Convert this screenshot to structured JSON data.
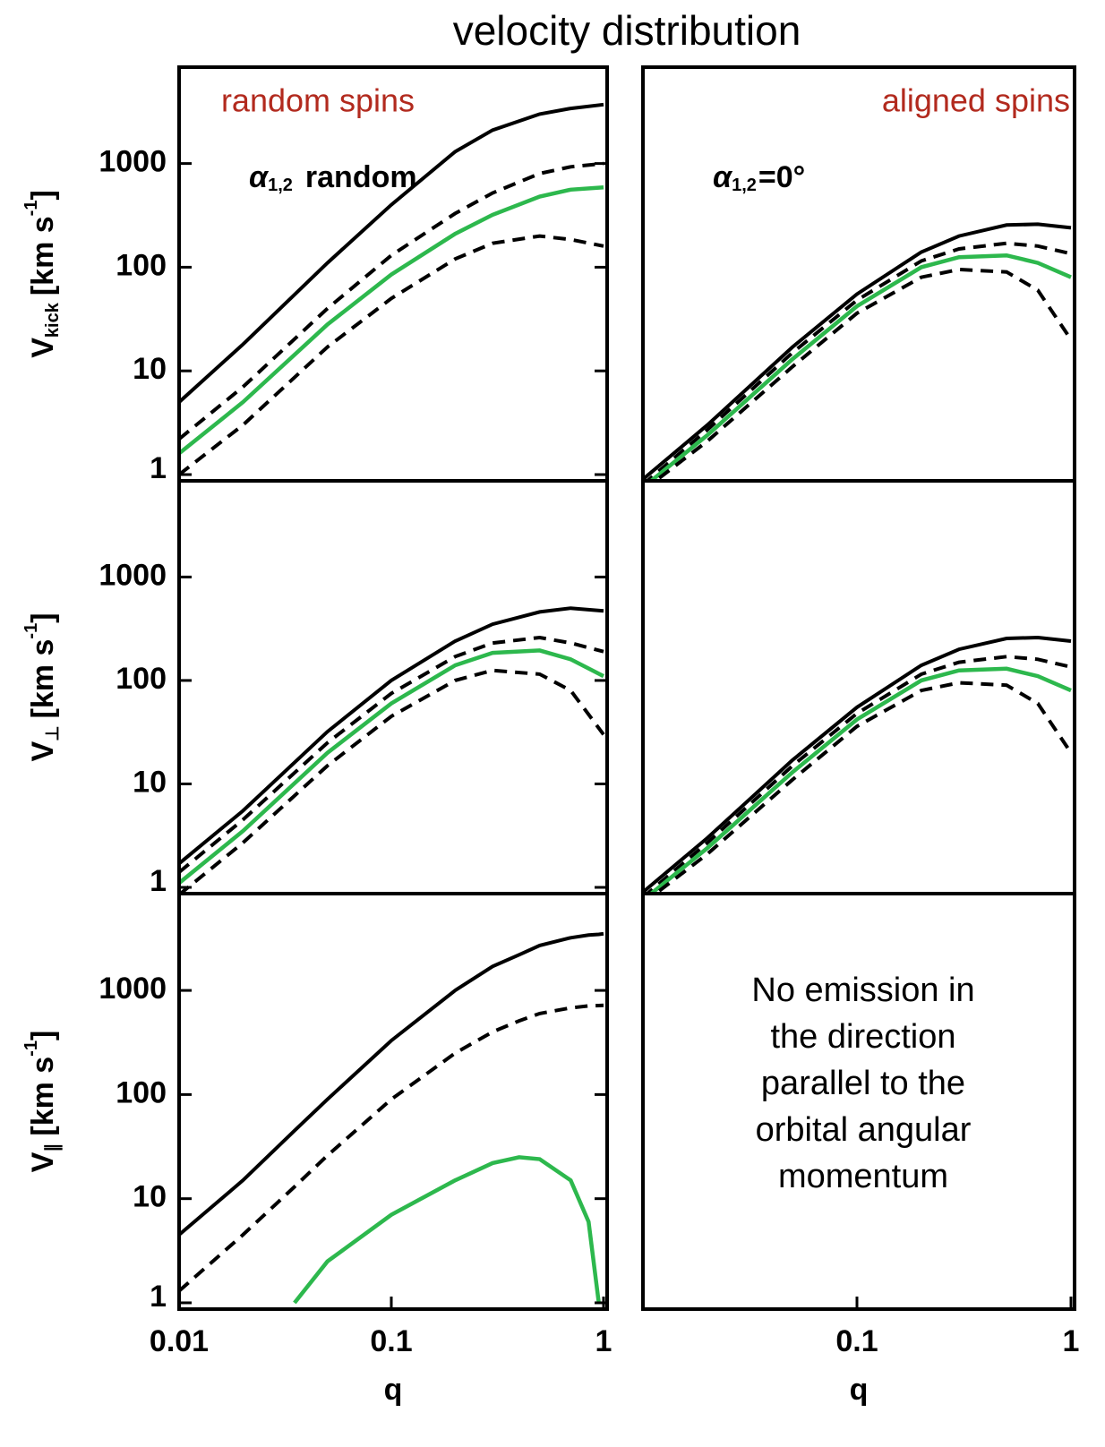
{
  "title": "velocity distribution",
  "chart_data": [
    {
      "type": "line",
      "annotation": "random spins",
      "label": {
        "text": "α",
        "sub": "1,2",
        "rest": "random"
      },
      "ylabel": {
        "text": "V",
        "sub": "kick",
        "unit": "[km s",
        "sup": "-1",
        "end": "]"
      },
      "xlim": [
        0.01,
        1
      ],
      "ylim": [
        0.87,
        8500
      ],
      "yticks": [
        1,
        10,
        100,
        1000
      ],
      "log": true,
      "x": [
        0.01,
        0.02,
        0.05,
        0.1,
        0.2,
        0.3,
        0.5,
        0.7,
        1
      ],
      "series": [
        {
          "color": "#000000",
          "style": "solid",
          "values": [
            5,
            18,
            110,
            400,
            1300,
            2100,
            3000,
            3400,
            3700
          ]
        },
        {
          "color": "#000000",
          "style": "dashed",
          "values": [
            2.2,
            7,
            40,
            130,
            330,
            520,
            800,
            930,
            1000
          ]
        },
        {
          "color": "#2db84d",
          "style": "solid",
          "values": [
            1.6,
            5,
            28,
            85,
            210,
            320,
            480,
            560,
            590
          ]
        },
        {
          "color": "#000000",
          "style": "dashed",
          "values": [
            1.0,
            3,
            17,
            50,
            120,
            170,
            200,
            185,
            160
          ]
        }
      ]
    },
    {
      "type": "line",
      "annotation": "aligned spins",
      "label": {
        "text": "α",
        "sub": "1,2",
        "rest": "=0°"
      },
      "xlim": [
        0.01,
        1
      ],
      "ylim": [
        0.87,
        8500
      ],
      "log": true,
      "x": [
        0.01,
        0.02,
        0.05,
        0.1,
        0.2,
        0.3,
        0.5,
        0.7,
        1
      ],
      "series": [
        {
          "color": "#000000",
          "style": "solid",
          "values": [
            0.9,
            3,
            17,
            55,
            140,
            200,
            255,
            260,
            240
          ]
        },
        {
          "color": "#000000",
          "style": "dashed",
          "values": [
            0.8,
            2.7,
            15,
            48,
            115,
            150,
            170,
            160,
            135
          ]
        },
        {
          "color": "#2db84d",
          "style": "solid",
          "values": [
            0.75,
            2.4,
            13,
            42,
            100,
            125,
            130,
            110,
            80
          ]
        },
        {
          "color": "#000000",
          "style": "dashed",
          "values": [
            0.7,
            2.1,
            11,
            36,
            80,
            95,
            90,
            60,
            20
          ]
        }
      ]
    },
    {
      "type": "line",
      "ylabel": {
        "text": "V",
        "sub": "⊥",
        "unit": "[km s",
        "sup": "-1",
        "end": "]"
      },
      "xlim": [
        0.01,
        1
      ],
      "ylim": [
        0.87,
        8500
      ],
      "yticks": [
        1,
        10,
        100,
        1000
      ],
      "log": true,
      "x": [
        0.01,
        0.02,
        0.05,
        0.1,
        0.2,
        0.3,
        0.5,
        0.7,
        1
      ],
      "series": [
        {
          "color": "#000000",
          "style": "solid",
          "values": [
            1.7,
            5.5,
            32,
            100,
            240,
            350,
            460,
            500,
            470
          ]
        },
        {
          "color": "#000000",
          "style": "dashed",
          "values": [
            1.4,
            4.5,
            25,
            75,
            170,
            230,
            260,
            230,
            190
          ]
        },
        {
          "color": "#2db84d",
          "style": "solid",
          "values": [
            1.1,
            3.5,
            20,
            60,
            140,
            185,
            195,
            160,
            110
          ]
        },
        {
          "color": "#000000",
          "style": "dashed",
          "values": [
            0.85,
            2.7,
            15,
            45,
            100,
            125,
            115,
            80,
            30
          ]
        }
      ]
    },
    {
      "type": "line",
      "xlim": [
        0.01,
        1
      ],
      "ylim": [
        0.87,
        8500
      ],
      "log": true,
      "x": [
        0.01,
        0.02,
        0.05,
        0.1,
        0.2,
        0.3,
        0.5,
        0.7,
        1
      ],
      "series": [
        {
          "color": "#000000",
          "style": "solid",
          "values": [
            0.9,
            3,
            17,
            55,
            140,
            200,
            255,
            260,
            240
          ]
        },
        {
          "color": "#000000",
          "style": "dashed",
          "values": [
            0.8,
            2.7,
            15,
            48,
            115,
            150,
            170,
            160,
            135
          ]
        },
        {
          "color": "#2db84d",
          "style": "solid",
          "values": [
            0.75,
            2.4,
            13,
            42,
            100,
            125,
            130,
            110,
            80
          ]
        },
        {
          "color": "#000000",
          "style": "dashed",
          "values": [
            0.7,
            2.1,
            11,
            36,
            80,
            95,
            90,
            60,
            20
          ]
        }
      ]
    },
    {
      "type": "line",
      "ylabel": {
        "text": "V",
        "sub": "∥",
        "unit": "[km s",
        "sup": "-1",
        "end": "]"
      },
      "xlabel": "q",
      "xlim": [
        0.01,
        1
      ],
      "ylim": [
        0.87,
        8500
      ],
      "xticks": [
        0.01,
        0.1,
        1
      ],
      "yticks": [
        1,
        10,
        100,
        1000
      ],
      "log": true,
      "x": [
        0.01,
        0.02,
        0.035,
        0.05,
        0.1,
        0.2,
        0.3,
        0.4,
        0.5,
        0.7,
        0.85,
        0.95,
        1
      ],
      "series": [
        {
          "color": "#000000",
          "style": "solid",
          "values": [
            4.5,
            15,
            45,
            90,
            330,
            1000,
            1700,
            2200,
            2700,
            3200,
            3400,
            3450,
            3500
          ]
        },
        {
          "color": "#000000",
          "style": "dashed",
          "values": [
            1.3,
            4.5,
            13,
            26,
            90,
            250,
            400,
            510,
            600,
            680,
            710,
            715,
            720
          ]
        },
        {
          "color": "#2db84d",
          "style": "solid",
          "values": [
            null,
            null,
            1,
            2.5,
            7,
            15,
            22,
            25,
            24,
            15,
            6,
            1,
            null
          ]
        }
      ]
    },
    {
      "type": "line",
      "xlabel": "q",
      "xlim": [
        0.01,
        1
      ],
      "ylim": [
        0.87,
        8500
      ],
      "xticks": [
        0.1,
        1
      ],
      "log": true,
      "text_block": [
        "No emission in",
        "the direction",
        "parallel to the",
        "orbital angular",
        "momentum"
      ],
      "x": [],
      "series": []
    }
  ]
}
